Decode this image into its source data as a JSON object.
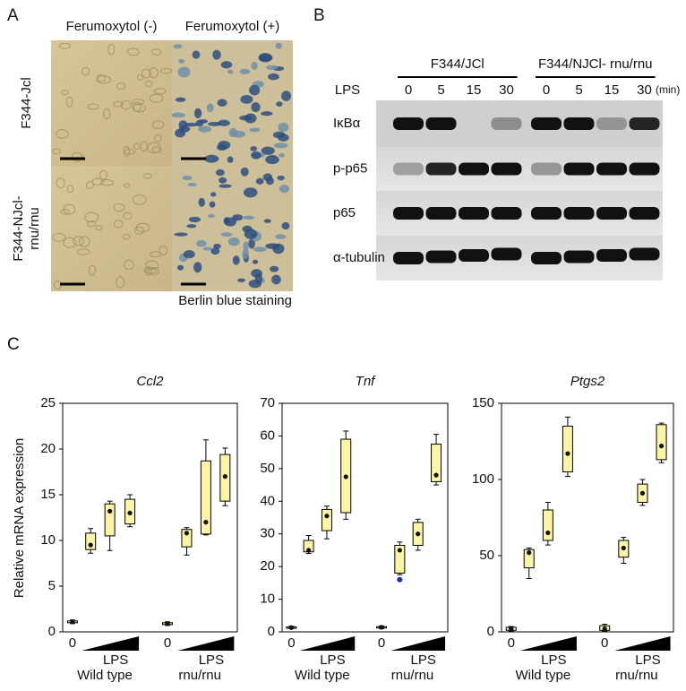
{
  "panel_a": {
    "label": "A",
    "columns": [
      "Ferumoxytol (-)",
      "Ferumoxytol (+)"
    ],
    "rows": [
      [
        "F344-Jcl"
      ],
      [
        "F344-NJcl-",
        "rnu/rnu"
      ]
    ],
    "caption": "Berlin blue staining"
  },
  "panel_b": {
    "label": "B",
    "groups": [
      "F344/JCl",
      "F344/NJCl- rnu/rnu"
    ],
    "row_label": "LPS",
    "times": [
      "0",
      "5",
      "15",
      "30",
      "0",
      "5",
      "15",
      "30"
    ],
    "unit": "(min)",
    "bands": [
      "IκBα",
      "p-p65",
      "p65",
      "α-tubulin"
    ]
  },
  "panel_c": {
    "label": "C",
    "y_label": "Relative mRNA expression",
    "x_zero": "0",
    "x_lps": "LPS",
    "genotypes": [
      "Wild type",
      "rnu/rnu"
    ],
    "charts": [
      {
        "type": "box",
        "title": "Ccl2",
        "ylim": [
          0,
          25
        ],
        "yticks": [
          0,
          5,
          10,
          15,
          20,
          25
        ],
        "color": "#fdf5a6",
        "boxes": [
          {
            "min": 0.9,
            "q1": 1.0,
            "median": 1.1,
            "q3": 1.2,
            "max": 1.3
          },
          {
            "min": 8.6,
            "q1": 9.0,
            "median": 9.5,
            "q3": 10.8,
            "max": 11.3
          },
          {
            "min": 8.9,
            "q1": 10.5,
            "median": 13.2,
            "q3": 14.0,
            "max": 14.3
          },
          {
            "min": 11.5,
            "q1": 11.8,
            "median": 13.0,
            "q3": 14.5,
            "max": 15.0
          },
          {
            "min": 0.7,
            "q1": 0.8,
            "median": 0.9,
            "q3": 1.0,
            "max": 1.1
          },
          {
            "min": 8.4,
            "q1": 9.3,
            "median": 10.8,
            "q3": 11.2,
            "max": 11.4
          },
          {
            "min": 10.6,
            "q1": 10.7,
            "median": 12.0,
            "q3": 18.7,
            "max": 21.0
          },
          {
            "min": 13.8,
            "q1": 14.3,
            "median": 17.0,
            "q3": 19.4,
            "max": 20.1
          }
        ]
      },
      {
        "type": "box",
        "title": "Tnf",
        "ylim": [
          0,
          70
        ],
        "yticks": [
          0,
          10,
          20,
          30,
          40,
          50,
          60,
          70
        ],
        "color": "#fdf5a6",
        "boxes": [
          {
            "min": 1.0,
            "q1": 1.2,
            "median": 1.3,
            "q3": 1.5,
            "max": 1.7
          },
          {
            "min": 24,
            "q1": 24.5,
            "median": 25,
            "q3": 28,
            "max": 29.5
          },
          {
            "min": 28.5,
            "q1": 31,
            "median": 35.5,
            "q3": 37.5,
            "max": 38.5
          },
          {
            "min": 34.5,
            "q1": 36.5,
            "median": 47.5,
            "q3": 59,
            "max": 61.5
          },
          {
            "min": 1.0,
            "q1": 1.2,
            "median": 1.4,
            "q3": 1.6,
            "max": 1.8
          },
          {
            "min": 17.5,
            "q1": 18,
            "median": 25,
            "q3": 26.5,
            "max": 27.5,
            "outlier": 16
          },
          {
            "min": 25,
            "q1": 26.5,
            "median": 30,
            "q3": 33.5,
            "max": 34.5
          },
          {
            "min": 45,
            "q1": 46,
            "median": 48,
            "q3": 57.5,
            "max": 60.5
          }
        ]
      },
      {
        "type": "box",
        "title": "Ptgs2",
        "ylim": [
          0,
          150
        ],
        "yticks": [
          0,
          50,
          100,
          150
        ],
        "color": "#fdf5a6",
        "boxes": [
          {
            "min": 0.5,
            "q1": 1,
            "median": 2,
            "q3": 3,
            "max": 3.5
          },
          {
            "min": 35,
            "q1": 42,
            "median": 52,
            "q3": 54,
            "max": 55
          },
          {
            "min": 57,
            "q1": 60,
            "median": 65,
            "q3": 80,
            "max": 85
          },
          {
            "min": 102,
            "q1": 105,
            "median": 117,
            "q3": 135,
            "max": 141
          },
          {
            "min": 0.5,
            "q1": 1,
            "median": 2,
            "q3": 4,
            "max": 5
          },
          {
            "min": 45,
            "q1": 49,
            "median": 55,
            "q3": 60,
            "max": 62
          },
          {
            "min": 83,
            "q1": 85,
            "median": 91,
            "q3": 97,
            "max": 100
          },
          {
            "min": 111,
            "q1": 113,
            "median": 122,
            "q3": 136,
            "max": 137
          }
        ]
      }
    ]
  }
}
